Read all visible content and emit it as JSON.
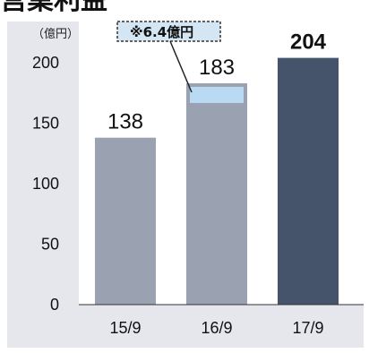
{
  "header": {
    "title": "営業利益"
  },
  "chart_data": {
    "type": "bar",
    "unit_label": "（億円）",
    "categories": [
      "15/9",
      "16/9",
      "17/9"
    ],
    "values": [
      138,
      183,
      204
    ],
    "value_labels": [
      "138",
      "183",
      "204"
    ],
    "ylim": [
      0,
      200
    ],
    "yticks": [
      "0",
      "50",
      "100",
      "150",
      "200"
    ],
    "grid": false,
    "annotation": {
      "text": "※6.4億円",
      "category": "16/9",
      "segment_value": 6.4
    },
    "colors": {
      "bar": "#9aa1b0",
      "bar_highlight": "#46546b",
      "segment": "#b9daf2",
      "frame": "#e5e7ed",
      "axis": "#333333"
    }
  }
}
